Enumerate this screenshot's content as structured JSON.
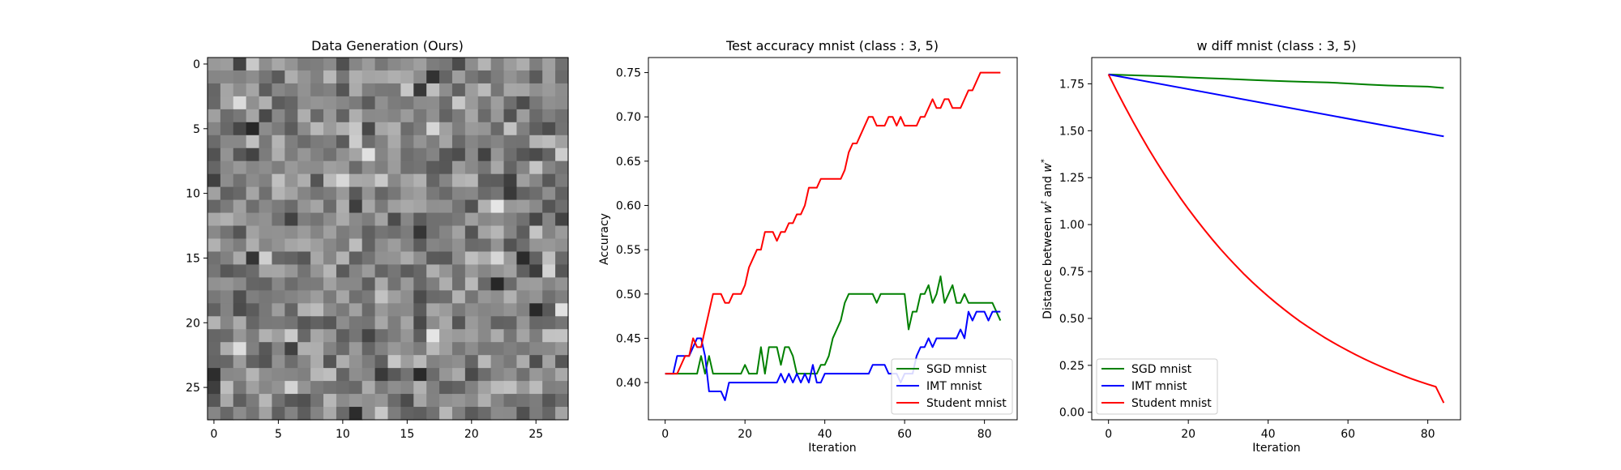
{
  "chart_data": [
    {
      "type": "heatmap",
      "title": "Data Generation (Ours)",
      "xlabel": "",
      "ylabel": "",
      "xticks": [
        0,
        5,
        10,
        15,
        20,
        25
      ],
      "yticks": [
        0,
        5,
        10,
        15,
        20,
        25
      ],
      "grid_size": [
        28,
        28
      ],
      "colormap": "gray",
      "grid_seed": 7,
      "highlight_cells": [
        {
          "row": 3,
          "col": 2,
          "value": 0.92
        },
        {
          "row": 5,
          "col": 3,
          "value": 0.02
        },
        {
          "row": 7,
          "col": 12,
          "value": 0.95
        },
        {
          "row": 11,
          "col": 22,
          "value": 0.97
        },
        {
          "row": 15,
          "col": 24,
          "value": 0.04
        },
        {
          "row": 17,
          "col": 22,
          "value": 0.02
        },
        {
          "row": 19,
          "col": 25,
          "value": 0.03
        },
        {
          "row": 19,
          "col": 27,
          "value": 0.95
        },
        {
          "row": 21,
          "col": 17,
          "value": 0.97
        },
        {
          "row": 22,
          "col": 2,
          "value": 0.93
        },
        {
          "row": 24,
          "col": 0,
          "value": 0.05
        },
        {
          "row": 24,
          "col": 16,
          "value": 0.03
        }
      ]
    },
    {
      "type": "line",
      "title": "Test accuracy mnist (class : 3, 5)",
      "xlabel": "Iteration",
      "ylabel": "Accuracy",
      "xlim": [
        -4.2,
        88.2
      ],
      "ylim": [
        0.358,
        0.767
      ],
      "xticks": [
        0,
        20,
        40,
        60,
        80
      ],
      "yticks": [
        0.4,
        0.45,
        0.5,
        0.55,
        0.6,
        0.65,
        0.7,
        0.75
      ],
      "legend_position": "lower-right",
      "series": [
        {
          "name": "SGD mnist",
          "color": "#008000",
          "values": [
            0.41,
            0.41,
            0.41,
            0.41,
            0.41,
            0.41,
            0.41,
            0.41,
            0.41,
            0.43,
            0.41,
            0.43,
            0.41,
            0.41,
            0.41,
            0.41,
            0.41,
            0.41,
            0.41,
            0.41,
            0.42,
            0.41,
            0.41,
            0.41,
            0.44,
            0.41,
            0.44,
            0.44,
            0.44,
            0.42,
            0.44,
            0.44,
            0.43,
            0.41,
            0.41,
            0.41,
            0.41,
            0.41,
            0.41,
            0.42,
            0.42,
            0.43,
            0.45,
            0.46,
            0.47,
            0.49,
            0.5,
            0.5,
            0.5,
            0.5,
            0.5,
            0.5,
            0.5,
            0.49,
            0.5,
            0.5,
            0.5,
            0.5,
            0.5,
            0.5,
            0.5,
            0.46,
            0.48,
            0.48,
            0.5,
            0.5,
            0.51,
            0.49,
            0.5,
            0.52,
            0.49,
            0.5,
            0.51,
            0.49,
            0.49,
            0.5,
            0.49,
            0.49,
            0.49,
            0.49,
            0.49,
            0.49,
            0.49,
            0.48,
            0.47
          ]
        },
        {
          "name": "IMT mnist",
          "color": "#0000ff",
          "values": [
            0.41,
            0.41,
            0.41,
            0.43,
            0.43,
            0.43,
            0.43,
            0.44,
            0.45,
            0.45,
            0.43,
            0.39,
            0.39,
            0.39,
            0.39,
            0.38,
            0.4,
            0.4,
            0.4,
            0.4,
            0.4,
            0.4,
            0.4,
            0.4,
            0.4,
            0.4,
            0.4,
            0.4,
            0.4,
            0.41,
            0.4,
            0.41,
            0.4,
            0.41,
            0.4,
            0.41,
            0.4,
            0.42,
            0.4,
            0.4,
            0.41,
            0.41,
            0.41,
            0.41,
            0.41,
            0.41,
            0.41,
            0.41,
            0.41,
            0.41,
            0.41,
            0.41,
            0.42,
            0.42,
            0.42,
            0.42,
            0.41,
            0.41,
            0.41,
            0.4,
            0.41,
            0.41,
            0.41,
            0.43,
            0.44,
            0.44,
            0.45,
            0.44,
            0.45,
            0.45,
            0.45,
            0.45,
            0.45,
            0.45,
            0.46,
            0.45,
            0.48,
            0.47,
            0.48,
            0.48,
            0.48,
            0.47,
            0.48,
            0.48,
            0.48
          ]
        },
        {
          "name": "Student mnist",
          "color": "#ff0000",
          "values": [
            0.41,
            0.41,
            0.41,
            0.41,
            0.42,
            0.43,
            0.43,
            0.45,
            0.44,
            0.44,
            0.46,
            0.48,
            0.5,
            0.5,
            0.5,
            0.49,
            0.49,
            0.5,
            0.5,
            0.5,
            0.51,
            0.53,
            0.54,
            0.55,
            0.55,
            0.57,
            0.57,
            0.57,
            0.56,
            0.57,
            0.57,
            0.58,
            0.58,
            0.59,
            0.59,
            0.6,
            0.62,
            0.62,
            0.62,
            0.63,
            0.63,
            0.63,
            0.63,
            0.63,
            0.63,
            0.64,
            0.66,
            0.67,
            0.67,
            0.68,
            0.69,
            0.7,
            0.7,
            0.69,
            0.69,
            0.69,
            0.7,
            0.7,
            0.69,
            0.7,
            0.69,
            0.69,
            0.69,
            0.69,
            0.7,
            0.7,
            0.71,
            0.72,
            0.71,
            0.71,
            0.72,
            0.72,
            0.71,
            0.71,
            0.71,
            0.72,
            0.73,
            0.73,
            0.74,
            0.75,
            0.75,
            0.75,
            0.75,
            0.75,
            0.75
          ]
        }
      ]
    },
    {
      "type": "line",
      "title": "w diff mnist (class : 3, 5)",
      "xlabel": "Iteration",
      "ylabel": "Distance between w^t and w^*",
      "ylabel_parts": [
        "Distance between ",
        "w",
        "t",
        " and ",
        "w",
        "*"
      ],
      "xlim": [
        -4.2,
        88.2
      ],
      "ylim": [
        -0.04,
        1.89
      ],
      "xticks": [
        0,
        20,
        40,
        60,
        80
      ],
      "yticks": [
        0.0,
        0.25,
        0.5,
        0.75,
        1.0,
        1.25,
        1.5,
        1.75
      ],
      "legend_position": "lower-left",
      "series": [
        {
          "name": "SGD mnist",
          "color": "#008000",
          "x": [
            0,
            5,
            10,
            15,
            20,
            25,
            30,
            35,
            40,
            45,
            50,
            55,
            60,
            65,
            70,
            75,
            80,
            84
          ],
          "values": [
            1.8,
            1.796,
            1.793,
            1.789,
            1.784,
            1.78,
            1.776,
            1.771,
            1.767,
            1.763,
            1.76,
            1.757,
            1.752,
            1.746,
            1.741,
            1.738,
            1.735,
            1.728
          ]
        },
        {
          "name": "IMT mnist",
          "color": "#0000ff",
          "x": [
            0,
            84
          ],
          "values": [
            1.8,
            1.47
          ]
        },
        {
          "name": "Student mnist",
          "color": "#ff0000",
          "x": [
            0,
            2,
            4,
            6,
            8,
            10,
            12,
            14,
            16,
            18,
            20,
            22,
            24,
            26,
            28,
            30,
            32,
            34,
            36,
            38,
            40,
            42,
            44,
            46,
            48,
            50,
            52,
            54,
            56,
            58,
            60,
            62,
            64,
            66,
            68,
            70,
            72,
            74,
            76,
            78,
            80,
            82,
            84
          ],
          "values": [
            1.8,
            1.715,
            1.633,
            1.554,
            1.478,
            1.405,
            1.335,
            1.268,
            1.204,
            1.142,
            1.083,
            1.027,
            0.973,
            0.921,
            0.871,
            0.824,
            0.779,
            0.735,
            0.694,
            0.655,
            0.618,
            0.582,
            0.548,
            0.515,
            0.484,
            0.455,
            0.427,
            0.4,
            0.375,
            0.351,
            0.328,
            0.306,
            0.285,
            0.265,
            0.246,
            0.228,
            0.211,
            0.194,
            0.178,
            0.163,
            0.149,
            0.136,
            0.05
          ]
        }
      ]
    }
  ]
}
